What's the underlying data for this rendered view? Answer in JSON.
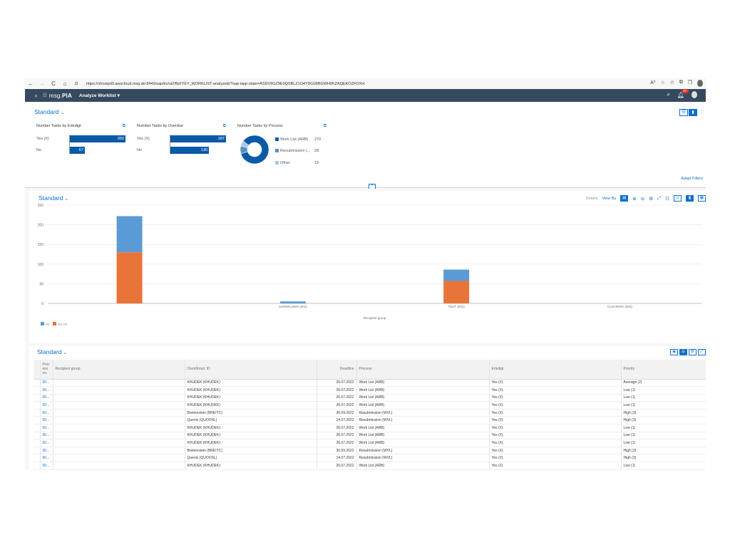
{
  "browser": {
    "url": "https://vhostpd3.awscloud.msg.de:8443/sap/bc/ui2/flp#YEY_WORKLIST-analyze&/?sap-iapp-state=ASDV9GZ9E0QSBLZ1O4Y9G1BBGWH0KZAQEKOZFOXH",
    "back": "←",
    "forward": "→",
    "reload": "C",
    "home": "⌂",
    "lock": "⊡"
  },
  "shell": {
    "logo_prefix": "msg.",
    "logo_main": "PIA",
    "app_title": "Analyze Worklist",
    "app_title_chevron": "▾",
    "notification_count": "99+"
  },
  "filter": {
    "variant": "Standard",
    "adapt_filters": "Adapt Filters",
    "cards": [
      {
        "title": "Number Tasks by Erledigt",
        "bars": [
          {
            "label": "Yes (X)",
            "value": 250
          },
          {
            "label": "No",
            "value": 67
          }
        ],
        "max": 250
      },
      {
        "title": "Number Tasks by Overdue",
        "bars": [
          {
            "label": "Yes (X)",
            "value": 187
          },
          {
            "label": "No",
            "value": 130
          }
        ],
        "max": 187
      }
    ],
    "donut": {
      "title": "Number Tasks by Process",
      "items": [
        {
          "label": "Work List (ARB)",
          "value": "270",
          "color": "#0a5aa7",
          "num": 270
        },
        {
          "label": "Resubmission (...",
          "value": "28",
          "color": "#5a8fc6",
          "num": 28
        },
        {
          "label": "Other",
          "value": "19",
          "color": "#a9c5e4",
          "num": 19
        }
      ]
    }
  },
  "chart": {
    "variant": "Standard",
    "details": "Details",
    "view_by": "View By",
    "x_axis_title": "Recipient group"
  },
  "chart_data": {
    "type": "bar",
    "stacked": true,
    "categories": [
      "",
      "SUPERUSER (001)",
      "TEST (002)",
      "CLEARING (004)"
    ],
    "series": [
      {
        "name": "Yes (X)",
        "color": "#e9743a",
        "values": [
          130,
          0,
          57,
          0
        ]
      },
      {
        "name": "No",
        "color": "#5b9bd5",
        "values": [
          92,
          5,
          29,
          0
        ]
      }
    ],
    "yticks": [
      0,
      50,
      100,
      150,
      200,
      250
    ],
    "ylim": [
      0,
      250
    ],
    "xlabel": "Recipient group",
    "ylabel": "",
    "grid": true,
    "legend_position": "bottom-left",
    "legend": [
      "No",
      "Yes (X)"
    ]
  },
  "table": {
    "variant": "Standard",
    "columns": [
      "Proc ess no.",
      "Recipient group",
      "Clerk/Empl. ID",
      "Deadline",
      "Process",
      "Erledigt",
      "Priority"
    ],
    "rows": [
      [
        "00...",
        "",
        "KHUDEK (KHUDEK)",
        "26.07.2022",
        "Work List (ARB)",
        "Yes (X)",
        "Average (2)"
      ],
      [
        "00...",
        "",
        "KHUDEK (KHUDEK)",
        "26.07.2022",
        "Work List (ARB)",
        "Yes (X)",
        "Low (1)"
      ],
      [
        "00...",
        "",
        "KHUDEK (KHUDEK)",
        "26.07.2022",
        "Work List (ARB)",
        "Yes (X)",
        "Low (1)"
      ],
      [
        "00...",
        "",
        "KHUDEK (KHUDEK)",
        "26.07.2022",
        "Work List (ARB)",
        "Yes (X)",
        "Low (1)"
      ],
      [
        "00...",
        "",
        "Breitenstein (BREITC)",
        "30.09.2022",
        "Resubmission (WVL)",
        "Yes (X)",
        "High (3)"
      ],
      [
        "00...",
        "",
        "Queois (QUOOSL)",
        "14.07.2022",
        "Resubmission (WVL)",
        "Yes (X)",
        "High (3)"
      ],
      [
        "00...",
        "",
        "KHUDEK (KHUDEK)",
        "26.07.2022",
        "Work List (ARB)",
        "Yes (X)",
        "Low (1)"
      ],
      [
        "00...",
        "",
        "KHUDEK (KHUDEK)",
        "26.07.2022",
        "Work List (ARB)",
        "Yes (X)",
        "Low (1)"
      ],
      [
        "00...",
        "",
        "KHUDEK (KHUDEK)",
        "26.07.2022",
        "Work List (ARB)",
        "Yes (X)",
        "Low (1)"
      ],
      [
        "00...",
        "",
        "Breitenstein (BREITC)",
        "30.09.2022",
        "Resubmission (WVL)",
        "Yes (X)",
        "High (3)"
      ],
      [
        "00...",
        "",
        "Queois (QUOOSL)",
        "14.07.2022",
        "Resubmission (WVL)",
        "Yes (X)",
        "High (3)"
      ],
      [
        "00...",
        "",
        "KHUDEK (KHUDEK)",
        "26.07.2022",
        "Work List (ARB)",
        "Yes (X)",
        "Low (1)"
      ]
    ]
  }
}
